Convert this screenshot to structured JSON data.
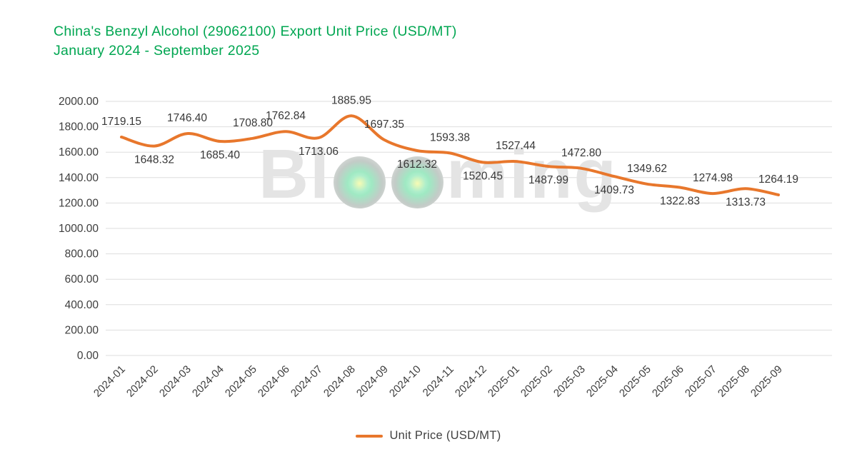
{
  "colors": {
    "title_green": "#00a651",
    "line_orange": "#e8772c",
    "grid_gray": "#dedede",
    "axis_text": "#3d3d3d",
    "data_label_text": "#383838",
    "legend_text": "#3f3f3f",
    "watermark_gray": "#e4e4e4"
  },
  "watermark": {
    "word": "Blooming",
    "prefix": "Bl",
    "suffix": "ming"
  },
  "chart_data": {
    "type": "line",
    "title": "China's Benzyl Alcohol (29062100) Export Unit Price (USD/MT)",
    "subtitle": "January 2024 - September 2025",
    "x": [
      "2024-01",
      "2024-02",
      "2024-03",
      "2024-04",
      "2024-05",
      "2024-06",
      "2024-07",
      "2024-08",
      "2024-09",
      "2024-10",
      "2024-11",
      "2024-12",
      "2025-01",
      "2025-02",
      "2025-03",
      "2025-04",
      "2025-05",
      "2025-06",
      "2025-07",
      "2025-08",
      "2025-09"
    ],
    "series": [
      {
        "name": "Unit Price (USD/MT)",
        "values": [
          1719.15,
          1648.32,
          1746.4,
          1685.4,
          1708.8,
          1762.84,
          1713.06,
          1885.95,
          1697.35,
          1612.32,
          1593.38,
          1520.45,
          1527.44,
          1487.99,
          1472.8,
          1409.73,
          1349.62,
          1322.83,
          1274.98,
          1313.73,
          1264.19
        ]
      }
    ],
    "label_positions": [
      "above",
      "below",
      "above",
      "below",
      "above",
      "above",
      "below",
      "above",
      "above",
      "below",
      "above",
      "below",
      "above",
      "below",
      "above",
      "below",
      "above",
      "below",
      "above",
      "below",
      "above"
    ],
    "ylim": [
      0,
      2000
    ],
    "ytick_step": 200,
    "xlabel": "",
    "ylabel": "",
    "grid": "horizontal",
    "smooth": true,
    "legend_position": "bottom"
  }
}
